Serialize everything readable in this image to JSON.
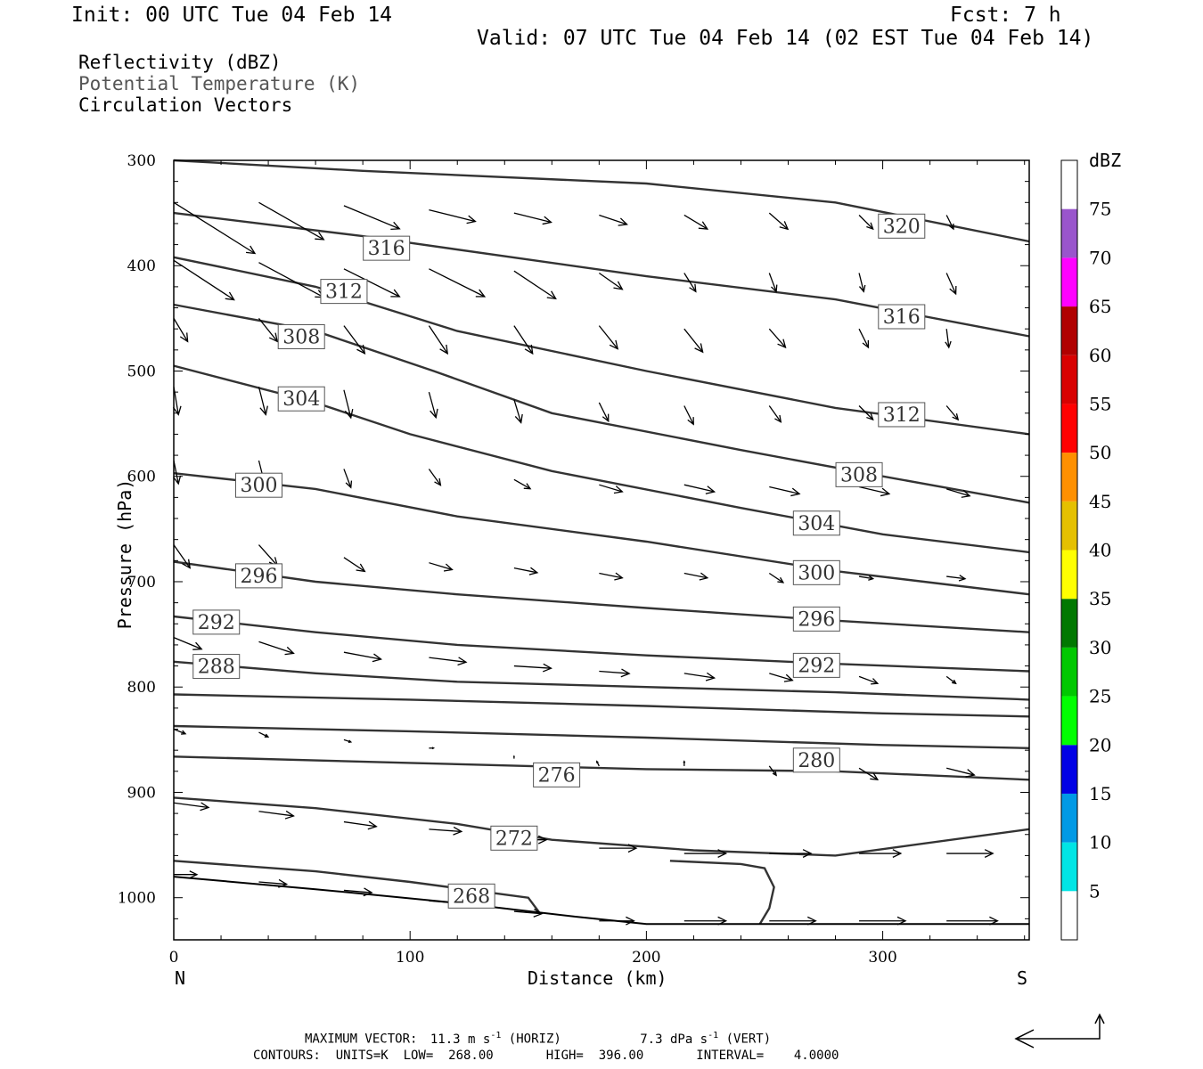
{
  "header": {
    "init": "Init: 00 UTC Tue 04 Feb 14",
    "fcst": "Fcst:    7 h",
    "valid": "Valid: 07 UTC Tue 04 Feb 14 (02 EST Tue 04 Feb 14)",
    "fields": [
      "Reflectivity (dBZ)",
      "Potential Temperature (K)",
      "Circulation Vectors"
    ]
  },
  "footer": {
    "maxvec_label": "MAXIMUM VECTOR:",
    "maxvec_horiz": "11.3 m s",
    "maxvec_horiz_sup": "-1",
    "maxvec_horiz_tail": "(HORIZ)",
    "maxvec_vert": "7.3 dPa s",
    "maxvec_vert_sup": "-1",
    "maxvec_vert_tail": "(VERT)",
    "contours": "CONTOURS:  UNITS=K  LOW=  268.00       HIGH=  396.00       INTERVAL=    4.0000"
  },
  "colors": {
    "contour": "#333333",
    "vector": "#000000",
    "scale": [
      "#00e5e5",
      "#0099e5",
      "#0000e5",
      "#00ff00",
      "#00c800",
      "#007800",
      "#ffff00",
      "#e5c000",
      "#ff9000",
      "#ff0000",
      "#d80000",
      "#b00000",
      "#ff00ff",
      "#9955cc"
    ]
  },
  "chart_data": {
    "type": "cross-section",
    "xlabel": "Distance (km)",
    "ylabel": "Pressure (hPa)",
    "xlim": [
      0,
      362
    ],
    "ylim": [
      300,
      1040
    ],
    "xticks": [
      0,
      100,
      200,
      300
    ],
    "yticks": [
      300,
      400,
      500,
      600,
      700,
      800,
      900,
      1000
    ],
    "left_end_label": "N",
    "right_end_label": "S",
    "colorbar": {
      "unit": "dBZ",
      "levels": [
        5,
        10,
        15,
        20,
        25,
        30,
        35,
        40,
        45,
        50,
        55,
        60,
        65,
        70,
        75
      ]
    },
    "isentropes": [
      {
        "theta": 320,
        "points": [
          [
            0,
            300
          ],
          [
            80,
            310
          ],
          [
            200,
            322
          ],
          [
            280,
            340
          ],
          [
            362,
            377
          ]
        ]
      },
      {
        "theta": 316,
        "points": [
          [
            0,
            350
          ],
          [
            80,
            372
          ],
          [
            200,
            410
          ],
          [
            280,
            432
          ],
          [
            362,
            467
          ]
        ]
      },
      {
        "theta": 312,
        "points": [
          [
            0,
            392
          ],
          [
            60,
            420
          ],
          [
            120,
            462
          ],
          [
            200,
            500
          ],
          [
            280,
            535
          ],
          [
            362,
            560
          ]
        ]
      },
      {
        "theta": 308,
        "points": [
          [
            0,
            437
          ],
          [
            60,
            462
          ],
          [
            110,
            500
          ],
          [
            160,
            540
          ],
          [
            240,
            575
          ],
          [
            300,
            600
          ],
          [
            362,
            625
          ]
        ]
      },
      {
        "theta": 304,
        "points": [
          [
            0,
            495
          ],
          [
            60,
            530
          ],
          [
            100,
            560
          ],
          [
            160,
            595
          ],
          [
            240,
            630
          ],
          [
            300,
            655
          ],
          [
            362,
            672
          ]
        ]
      },
      {
        "theta": 300,
        "points": [
          [
            0,
            597
          ],
          [
            60,
            612
          ],
          [
            120,
            638
          ],
          [
            200,
            662
          ],
          [
            280,
            690
          ],
          [
            362,
            712
          ]
        ]
      },
      {
        "theta": 296,
        "points": [
          [
            0,
            681
          ],
          [
            60,
            700
          ],
          [
            120,
            712
          ],
          [
            200,
            725
          ],
          [
            280,
            737
          ],
          [
            362,
            748
          ]
        ]
      },
      {
        "theta": 292,
        "points": [
          [
            0,
            733
          ],
          [
            60,
            748
          ],
          [
            120,
            760
          ],
          [
            200,
            770
          ],
          [
            280,
            778
          ],
          [
            362,
            785
          ]
        ]
      },
      {
        "theta": 288,
        "points": [
          [
            0,
            776
          ],
          [
            60,
            787
          ],
          [
            120,
            795
          ],
          [
            200,
            800
          ],
          [
            280,
            805
          ],
          [
            362,
            812
          ]
        ]
      },
      {
        "theta": 284,
        "points": [
          [
            0,
            807
          ],
          [
            100,
            812
          ],
          [
            200,
            818
          ],
          [
            300,
            825
          ],
          [
            362,
            828
          ]
        ]
      },
      {
        "theta": 280,
        "points": [
          [
            0,
            837
          ],
          [
            100,
            842
          ],
          [
            200,
            848
          ],
          [
            300,
            855
          ],
          [
            362,
            858
          ]
        ]
      },
      {
        "theta": 276,
        "points": [
          [
            0,
            866
          ],
          [
            100,
            872
          ],
          [
            150,
            875
          ],
          [
            200,
            878
          ],
          [
            280,
            880
          ],
          [
            362,
            888
          ]
        ]
      },
      {
        "theta": 272,
        "points": [
          [
            0,
            905
          ],
          [
            60,
            915
          ],
          [
            120,
            930
          ],
          [
            160,
            945
          ],
          [
            220,
            955
          ],
          [
            280,
            960
          ],
          [
            362,
            935
          ]
        ]
      },
      {
        "theta": 268,
        "points": [
          [
            0,
            965
          ],
          [
            60,
            975
          ],
          [
            100,
            985
          ],
          [
            150,
            1000
          ],
          [
            155,
            1015
          ]
        ]
      }
    ],
    "contour_labels": [
      {
        "text": "320",
        "x": 308,
        "p": 362
      },
      {
        "text": "316",
        "x": 90,
        "p": 383
      },
      {
        "text": "316",
        "x": 308,
        "p": 448
      },
      {
        "text": "312",
        "x": 72,
        "p": 424
      },
      {
        "text": "312",
        "x": 308,
        "p": 541
      },
      {
        "text": "308",
        "x": 54,
        "p": 467
      },
      {
        "text": "308",
        "x": 290,
        "p": 598
      },
      {
        "text": "304",
        "x": 54,
        "p": 526
      },
      {
        "text": "304",
        "x": 272,
        "p": 644
      },
      {
        "text": "300",
        "x": 36,
        "p": 608
      },
      {
        "text": "300",
        "x": 272,
        "p": 691
      },
      {
        "text": "296",
        "x": 36,
        "p": 694
      },
      {
        "text": "296",
        "x": 272,
        "p": 735
      },
      {
        "text": "292",
        "x": 18,
        "p": 738
      },
      {
        "text": "292",
        "x": 272,
        "p": 779
      },
      {
        "text": "288",
        "x": 18,
        "p": 780
      },
      {
        "text": "280",
        "x": 272,
        "p": 869
      },
      {
        "text": "276",
        "x": 162,
        "p": 883
      },
      {
        "text": "272",
        "x": 144,
        "p": 943
      },
      {
        "text": "268",
        "x": 126,
        "p": 998
      }
    ],
    "frontal_contour": [
      [
        210,
        965
      ],
      [
        240,
        968
      ],
      [
        250,
        972
      ],
      [
        254,
        990
      ],
      [
        252,
        1010
      ],
      [
        248,
        1025
      ]
    ],
    "surface_line": [
      [
        0,
        980
      ],
      [
        60,
        992
      ],
      [
        120,
        1005
      ],
      [
        170,
        1018
      ],
      [
        200,
        1025
      ],
      [
        362,
        1025
      ]
    ],
    "vectors": [
      {
        "x": 0,
        "p": 340,
        "u": 35,
        "v": 22
      },
      {
        "x": 36,
        "p": 340,
        "u": 28,
        "v": 16
      },
      {
        "x": 72,
        "p": 343,
        "u": 24,
        "v": 10
      },
      {
        "x": 108,
        "p": 347,
        "u": 20,
        "v": 5
      },
      {
        "x": 144,
        "p": 350,
        "u": 16,
        "v": 4
      },
      {
        "x": 180,
        "p": 352,
        "u": 12,
        "v": 4
      },
      {
        "x": 216,
        "p": 352,
        "u": 10,
        "v": 6
      },
      {
        "x": 252,
        "p": 350,
        "u": 8,
        "v": 7
      },
      {
        "x": 290,
        "p": 352,
        "u": 6,
        "v": 6
      },
      {
        "x": 327,
        "p": 352,
        "u": 3,
        "v": 6
      },
      {
        "x": 0,
        "p": 395,
        "u": 26,
        "v": 17
      },
      {
        "x": 36,
        "p": 397,
        "u": 28,
        "v": 15
      },
      {
        "x": 72,
        "p": 403,
        "u": 24,
        "v": 12
      },
      {
        "x": 108,
        "p": 403,
        "u": 24,
        "v": 12
      },
      {
        "x": 144,
        "p": 405,
        "u": 18,
        "v": 12
      },
      {
        "x": 180,
        "p": 407,
        "u": 10,
        "v": 7
      },
      {
        "x": 216,
        "p": 407,
        "u": 5,
        "v": 8
      },
      {
        "x": 252,
        "p": 407,
        "u": 3,
        "v": 8
      },
      {
        "x": 290,
        "p": 407,
        "u": 2,
        "v": 8
      },
      {
        "x": 327,
        "p": 407,
        "u": 4,
        "v": 9
      },
      {
        "x": 0,
        "p": 450,
        "u": 6,
        "v": 10
      },
      {
        "x": 36,
        "p": 450,
        "u": 8,
        "v": 10
      },
      {
        "x": 72,
        "p": 457,
        "u": 9,
        "v": 12
      },
      {
        "x": 108,
        "p": 457,
        "u": 8,
        "v": 12
      },
      {
        "x": 144,
        "p": 457,
        "u": 8,
        "v": 12
      },
      {
        "x": 180,
        "p": 457,
        "u": 8,
        "v": 10
      },
      {
        "x": 216,
        "p": 460,
        "u": 8,
        "v": 10
      },
      {
        "x": 252,
        "p": 460,
        "u": 7,
        "v": 8
      },
      {
        "x": 290,
        "p": 460,
        "u": 4,
        "v": 8
      },
      {
        "x": 327,
        "p": 460,
        "u": 1,
        "v": 8
      },
      {
        "x": 0,
        "p": 515,
        "u": 2,
        "v": 12
      },
      {
        "x": 36,
        "p": 515,
        "u": 3,
        "v": 12
      },
      {
        "x": 72,
        "p": 518,
        "u": 3,
        "v": 12
      },
      {
        "x": 108,
        "p": 520,
        "u": 3,
        "v": 11
      },
      {
        "x": 144,
        "p": 527,
        "u": 3,
        "v": 10
      },
      {
        "x": 180,
        "p": 530,
        "u": 4,
        "v": 8
      },
      {
        "x": 216,
        "p": 533,
        "u": 4,
        "v": 8
      },
      {
        "x": 252,
        "p": 533,
        "u": 5,
        "v": 7
      },
      {
        "x": 290,
        "p": 533,
        "u": 6,
        "v": 6
      },
      {
        "x": 327,
        "p": 533,
        "u": 5,
        "v": 6
      },
      {
        "x": 0,
        "p": 585,
        "u": 2,
        "v": 10
      },
      {
        "x": 36,
        "p": 585,
        "u": 3,
        "v": 12
      },
      {
        "x": 72,
        "p": 593,
        "u": 3,
        "v": 8
      },
      {
        "x": 108,
        "p": 593,
        "u": 5,
        "v": 7
      },
      {
        "x": 144,
        "p": 603,
        "u": 7,
        "v": 4
      },
      {
        "x": 180,
        "p": 608,
        "u": 10,
        "v": 3
      },
      {
        "x": 216,
        "p": 608,
        "u": 13,
        "v": 3
      },
      {
        "x": 252,
        "p": 610,
        "u": 13,
        "v": 3
      },
      {
        "x": 290,
        "p": 610,
        "u": 13,
        "v": 3
      },
      {
        "x": 327,
        "p": 612,
        "u": 10,
        "v": 3
      },
      {
        "x": 0,
        "p": 665,
        "u": 7,
        "v": 10
      },
      {
        "x": 36,
        "p": 665,
        "u": 8,
        "v": 9
      },
      {
        "x": 72,
        "p": 677,
        "u": 9,
        "v": 6
      },
      {
        "x": 108,
        "p": 682,
        "u": 10,
        "v": 3
      },
      {
        "x": 144,
        "p": 687,
        "u": 10,
        "v": 2
      },
      {
        "x": 180,
        "p": 692,
        "u": 10,
        "v": 2
      },
      {
        "x": 216,
        "p": 692,
        "u": 10,
        "v": 2
      },
      {
        "x": 252,
        "p": 692,
        "u": 6,
        "v": 4
      },
      {
        "x": 290,
        "p": 695,
        "u": 6,
        "v": 1
      },
      {
        "x": 327,
        "p": 695,
        "u": 8,
        "v": 1
      },
      {
        "x": 0,
        "p": 753,
        "u": 12,
        "v": 5
      },
      {
        "x": 36,
        "p": 757,
        "u": 15,
        "v": 5
      },
      {
        "x": 72,
        "p": 767,
        "u": 16,
        "v": 3
      },
      {
        "x": 108,
        "p": 772,
        "u": 16,
        "v": 2
      },
      {
        "x": 144,
        "p": 780,
        "u": 16,
        "v": 1
      },
      {
        "x": 180,
        "p": 785,
        "u": 13,
        "v": 1
      },
      {
        "x": 216,
        "p": 787,
        "u": 13,
        "v": 2
      },
      {
        "x": 252,
        "p": 787,
        "u": 10,
        "v": 3
      },
      {
        "x": 290,
        "p": 790,
        "u": 8,
        "v": 3
      },
      {
        "x": 327,
        "p": 790,
        "u": 4,
        "v": 3
      },
      {
        "x": 0,
        "p": 840,
        "u": 5,
        "v": 2
      },
      {
        "x": 36,
        "p": 843,
        "u": 4,
        "v": 2
      },
      {
        "x": 72,
        "p": 850,
        "u": 3,
        "v": 1
      },
      {
        "x": 108,
        "p": 858,
        "u": 2,
        "v": 0
      },
      {
        "x": 144,
        "p": 868,
        "u": 0,
        "v": -1
      },
      {
        "x": 180,
        "p": 875,
        "u": -1,
        "v": -2
      },
      {
        "x": 216,
        "p": 875,
        "u": 0,
        "v": -2
      },
      {
        "x": 252,
        "p": 875,
        "u": 3,
        "v": 4
      },
      {
        "x": 290,
        "p": 877,
        "u": 8,
        "v": 5
      },
      {
        "x": 327,
        "p": 877,
        "u": 12,
        "v": 3
      },
      {
        "x": 0,
        "p": 910,
        "u": 15,
        "v": 2
      },
      {
        "x": 36,
        "p": 918,
        "u": 15,
        "v": 2
      },
      {
        "x": 72,
        "p": 928,
        "u": 14,
        "v": 2
      },
      {
        "x": 108,
        "p": 935,
        "u": 14,
        "v": 1
      },
      {
        "x": 144,
        "p": 945,
        "u": 14,
        "v": 0
      },
      {
        "x": 180,
        "p": 953,
        "u": 16,
        "v": 0
      },
      {
        "x": 216,
        "p": 958,
        "u": 18,
        "v": 0
      },
      {
        "x": 252,
        "p": 958,
        "u": 18,
        "v": 0
      },
      {
        "x": 290,
        "p": 958,
        "u": 18,
        "v": 0
      },
      {
        "x": 327,
        "p": 958,
        "u": 20,
        "v": 0
      },
      {
        "x": 0,
        "p": 978,
        "u": 10,
        "v": 0
      },
      {
        "x": 36,
        "p": 985,
        "u": 12,
        "v": 1
      },
      {
        "x": 72,
        "p": 993,
        "u": 12,
        "v": 1
      },
      {
        "x": 108,
        "p": 1003,
        "u": 12,
        "v": 1
      },
      {
        "x": 144,
        "p": 1013,
        "u": 12,
        "v": 1
      },
      {
        "x": 180,
        "p": 1022,
        "u": 15,
        "v": 0
      },
      {
        "x": 216,
        "p": 1022,
        "u": 18,
        "v": 0
      },
      {
        "x": 252,
        "p": 1022,
        "u": 20,
        "v": 0
      },
      {
        "x": 290,
        "p": 1022,
        "u": 20,
        "v": 0
      },
      {
        "x": 327,
        "p": 1022,
        "u": 22,
        "v": 0
      }
    ]
  }
}
